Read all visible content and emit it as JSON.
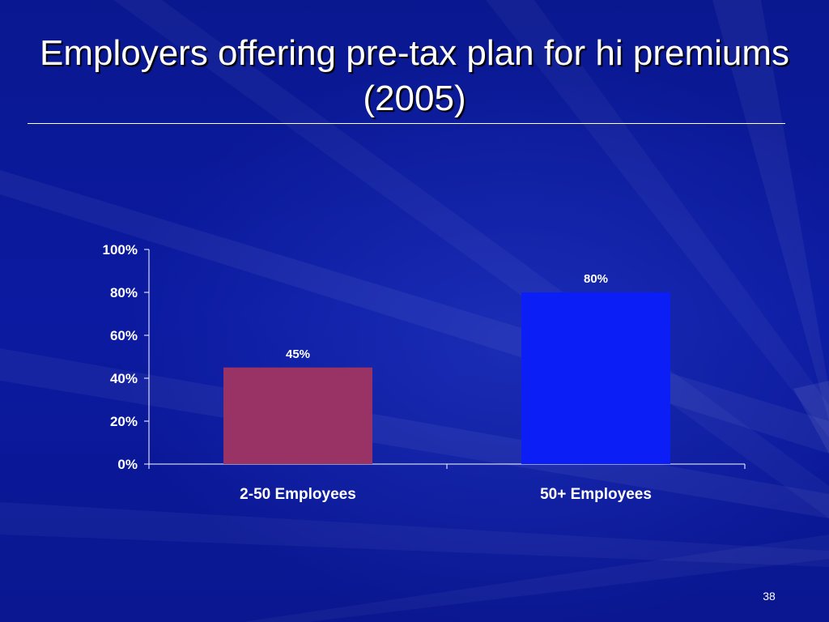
{
  "slide": {
    "title": "Employers offering pre-tax plan for hi premiums (2005)",
    "page_number": "38"
  },
  "colors": {
    "background": "#0b1aa0",
    "bar_small_employers": "#993366",
    "bar_large_employers": "#0a1ef5",
    "axis": "#ffffff"
  },
  "chart_data": {
    "type": "bar",
    "categories": [
      "2-50 Employees",
      "50+ Employees"
    ],
    "values": [
      45,
      80
    ],
    "data_labels": [
      "45%",
      "80%"
    ],
    "ylim": [
      0,
      100
    ],
    "yticks": [
      0,
      20,
      40,
      60,
      80,
      100
    ],
    "ytick_labels": [
      "0%",
      "20%",
      "40%",
      "60%",
      "80%",
      "100%"
    ],
    "xlabel": "",
    "ylabel": "",
    "grid": false,
    "legend": "none"
  }
}
